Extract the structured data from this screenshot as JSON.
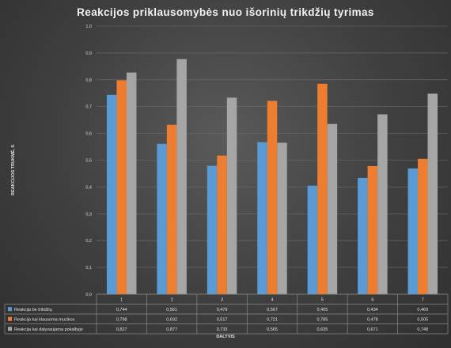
{
  "chart_data": {
    "type": "bar",
    "title": "Reakcijos  priklausomybės  nuo  išorinių  trikdžių  tyrimas",
    "xlabel": "DALYVIS",
    "ylabel": "REAKCIJOS TRUKMĖ, S",
    "ylim": [
      0,
      1.0
    ],
    "yticks": [
      "0,0",
      "0,1",
      "0,2",
      "0,3",
      "0,4",
      "0,5",
      "0,6",
      "0,7",
      "0,8",
      "0,9",
      "1,0"
    ],
    "grid": true,
    "legend": "data-table-below",
    "categories": [
      "1",
      "2",
      "3",
      "4",
      "5",
      "6",
      "7"
    ],
    "series": [
      {
        "name": "Reakcija be trikdžių",
        "color": "#5b9bd5",
        "values": [
          0.744,
          0.561,
          0.479,
          0.567,
          0.405,
          0.434,
          0.469
        ],
        "labels": [
          "0,744",
          "0,561",
          "0,479",
          "0,567",
          "0,405",
          "0,434",
          "0,469"
        ]
      },
      {
        "name": "Reakcija kai klausoma muzikos",
        "color": "#ed7d31",
        "values": [
          0.798,
          0.632,
          0.517,
          0.721,
          0.785,
          0.478,
          0.505
        ],
        "labels": [
          "0,798",
          "0,632",
          "0,517",
          "0,721",
          "0,785",
          "0,478",
          "0,505"
        ]
      },
      {
        "name": "Reakcija kai dalyvaujama pokalbyje",
        "color": "#a5a5a5",
        "values": [
          0.827,
          0.877,
          0.733,
          0.565,
          0.635,
          0.671,
          0.748
        ],
        "labels": [
          "0,827",
          "0,877",
          "0,733",
          "0,565",
          "0,635",
          "0,671",
          "0,748"
        ]
      }
    ]
  }
}
